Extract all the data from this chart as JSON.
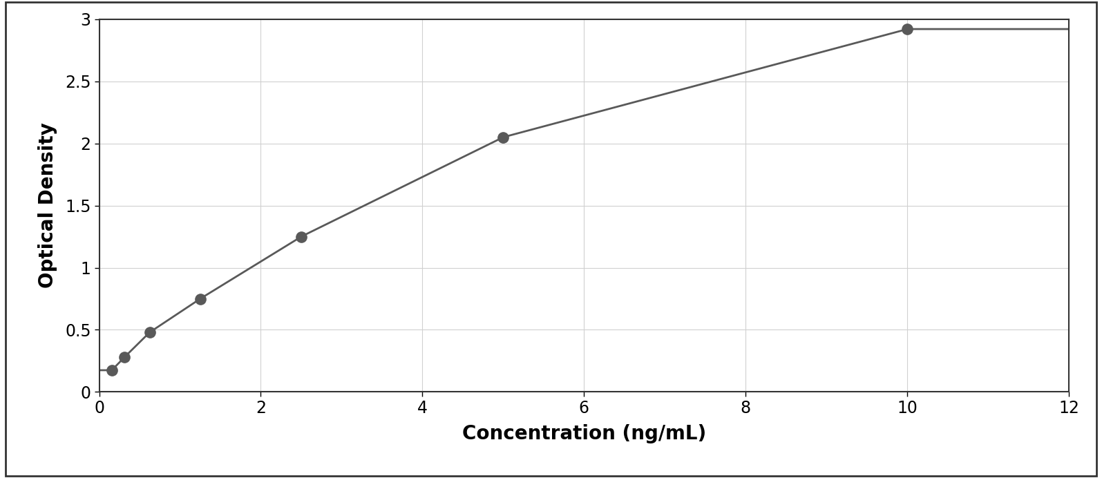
{
  "x_data": [
    0.156,
    0.313,
    0.625,
    1.25,
    2.5,
    5.0,
    10.0
  ],
  "y_data": [
    0.175,
    0.28,
    0.48,
    0.75,
    1.25,
    2.05,
    2.92
  ],
  "xlabel": "Concentration (ng/mL)",
  "ylabel": "Optical Density",
  "xlim": [
    0,
    12
  ],
  "ylim": [
    0,
    3.0
  ],
  "xticks": [
    0,
    2,
    4,
    6,
    8,
    10,
    12
  ],
  "yticks": [
    0,
    0.5,
    1.0,
    1.5,
    2.0,
    2.5,
    3.0
  ],
  "marker_color": "#595959",
  "line_color": "#595959",
  "grid_color": "#d0d0d0",
  "background_color": "#ffffff",
  "border_color": "#333333",
  "xlabel_fontsize": 20,
  "ylabel_fontsize": 20,
  "tick_fontsize": 17,
  "marker_size": 11,
  "line_width": 2.0,
  "figure_background": "#ffffff"
}
